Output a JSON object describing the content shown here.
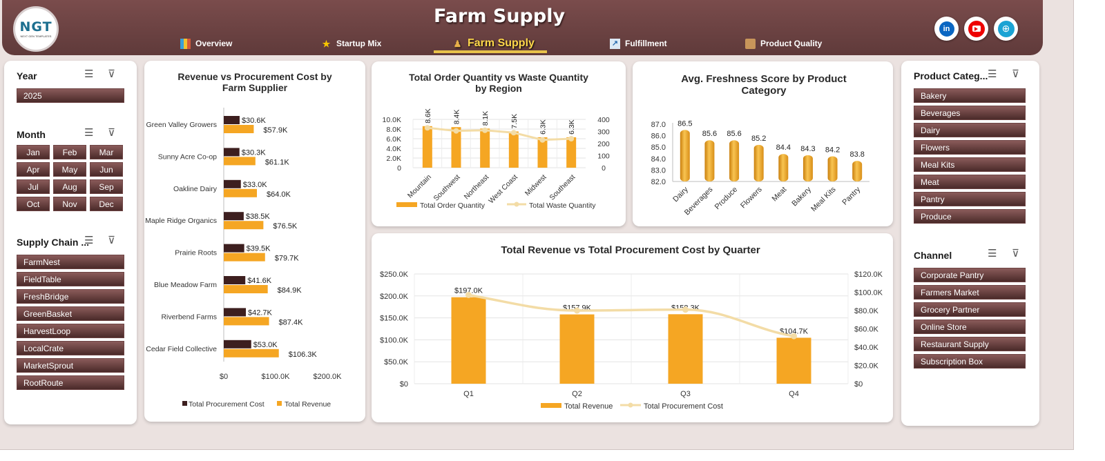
{
  "header": {
    "logo_text": "NGT",
    "logo_sub": "NEXT GEN TEMPLATES",
    "title": "Farm Supply",
    "tabs": [
      {
        "label": "Overview",
        "icon": "dashboard-icon",
        "active": false
      },
      {
        "label": "Startup Mix",
        "icon": "star-icon",
        "active": false
      },
      {
        "label": "Farm Supply",
        "icon": "farmer-icon",
        "active": true
      },
      {
        "label": "Fulfillment",
        "icon": "line-chart-icon",
        "active": false
      },
      {
        "label": "Product Quality",
        "icon": "box-icon",
        "active": false
      }
    ],
    "social": [
      "linkedin-icon",
      "youtube-icon",
      "globe-icon"
    ]
  },
  "filters": {
    "year": {
      "title": "Year",
      "items": [
        "2025"
      ]
    },
    "month": {
      "title": "Month",
      "items": [
        "Jan",
        "Feb",
        "Mar",
        "Apr",
        "May",
        "Jun",
        "Jul",
        "Aug",
        "Sep",
        "Oct",
        "Nov",
        "Dec"
      ]
    },
    "supply_chain": {
      "title": "Supply Chain ...",
      "items": [
        "FarmNest",
        "FieldTable",
        "FreshBridge",
        "GreenBasket",
        "HarvestLoop",
        "LocalCrate",
        "MarketSprout",
        "RootRoute"
      ]
    },
    "product_category": {
      "title": "Product Categ...",
      "items": [
        "Bakery",
        "Beverages",
        "Dairy",
        "Flowers",
        "Meal Kits",
        "Meat",
        "Pantry",
        "Produce"
      ]
    },
    "channel": {
      "title": "Channel",
      "items": [
        "Corporate Pantry",
        "Farmers Market",
        "Grocery Partner",
        "Online Store",
        "Restaurant Supply",
        "Subscription Box"
      ]
    }
  },
  "colors": {
    "revenue": "#f5a623",
    "procurement": "#3d1f1f",
    "waste_line": "#f3dca6",
    "header": "#6b4242",
    "slicer": "#5a3434"
  },
  "chart_data": [
    {
      "type": "bar",
      "orientation": "horizontal",
      "title": "Revenue vs Procurement Cost by Farm Supplier",
      "categories": [
        "Green Valley Growers",
        "Sunny Acre Co-op",
        "Oakline Dairy",
        "Maple Ridge Organics",
        "Prairie Roots",
        "Blue Meadow Farm",
        "Riverbend Farms",
        "Cedar Field Collective"
      ],
      "series": [
        {
          "name": "Total Procurement Cost",
          "values": [
            30.6,
            30.3,
            33.0,
            38.5,
            39.5,
            41.6,
            42.7,
            53.0
          ],
          "labels": [
            "$30.6K",
            "$30.3K",
            "$33.0K",
            "$38.5K",
            "$39.5K",
            "$41.6K",
            "$42.7K",
            "$53.0K"
          ]
        },
        {
          "name": "Total Revenue",
          "values": [
            57.9,
            61.1,
            64.0,
            76.5,
            79.7,
            84.9,
            87.4,
            106.3
          ],
          "labels": [
            "$57.9K",
            "$61.1K",
            "$64.0K",
            "$76.5K",
            "$79.7K",
            "$84.9K",
            "$87.4K",
            "$106.3K"
          ]
        }
      ],
      "xticks": [
        "$0",
        "$100.0K",
        "$200.0K"
      ],
      "xlim": [
        0,
        200
      ]
    },
    {
      "type": "bar",
      "title": "Total Order Quantity vs Waste Quantity by Region",
      "categories": [
        "Mountain",
        "Southwest",
        "Northeast",
        "West Coast",
        "Midwest",
        "Southeast"
      ],
      "series": [
        {
          "name": "Total Order Quantity",
          "values": [
            8.6,
            8.4,
            8.1,
            7.5,
            6.3,
            6.3
          ],
          "labels": [
            "8.6K",
            "8.4K",
            "8.1K",
            "7.5K",
            "6.3K",
            "6.3K"
          ]
        },
        {
          "name": "Total Waste Quantity",
          "type": "line",
          "values": [
            330,
            305,
            310,
            290,
            230,
            240
          ]
        }
      ],
      "yticks_left": [
        "10.0K",
        "8.0K",
        "6.0K",
        "4.0K",
        "2.0K",
        "0"
      ],
      "yticks_right": [
        "400",
        "300",
        "200",
        "100",
        "0"
      ],
      "ylim_left": [
        0,
        10
      ],
      "ylim_right": [
        0,
        400
      ]
    },
    {
      "type": "bar",
      "title": "Avg. Freshness Score by Product Category",
      "categories": [
        "Dairy",
        "Beverages",
        "Produce",
        "Flowers",
        "Meat",
        "Bakery",
        "Meal Kits",
        "Pantry"
      ],
      "values": [
        86.5,
        85.6,
        85.6,
        85.2,
        84.4,
        84.3,
        84.2,
        83.8
      ],
      "yticks": [
        "87.0",
        "86.0",
        "85.0",
        "84.0",
        "83.0",
        "82.0"
      ],
      "ylim": [
        82,
        87
      ]
    },
    {
      "type": "bar",
      "title": "Total Revenue vs Total Procurement Cost by Quarter",
      "categories": [
        "Q1",
        "Q2",
        "Q3",
        "Q4"
      ],
      "series": [
        {
          "name": "Total Revenue",
          "values": [
            197.0,
            157.9,
            158.3,
            104.7
          ],
          "labels": [
            "$197.0K",
            "$157.9K",
            "$158.3K",
            "$104.7K"
          ]
        },
        {
          "name": "Total Procurement Cost",
          "type": "line",
          "values": [
            97,
            80,
            81,
            52
          ]
        }
      ],
      "yticks_left": [
        "$250.0K",
        "$200.0K",
        "$150.0K",
        "$100.0K",
        "$50.0K",
        "$0"
      ],
      "yticks_right": [
        "$120.0K",
        "$100.0K",
        "$80.0K",
        "$60.0K",
        "$40.0K",
        "$20.0K",
        "$0"
      ],
      "ylim_left": [
        0,
        250
      ],
      "ylim_right": [
        0,
        120
      ]
    }
  ]
}
